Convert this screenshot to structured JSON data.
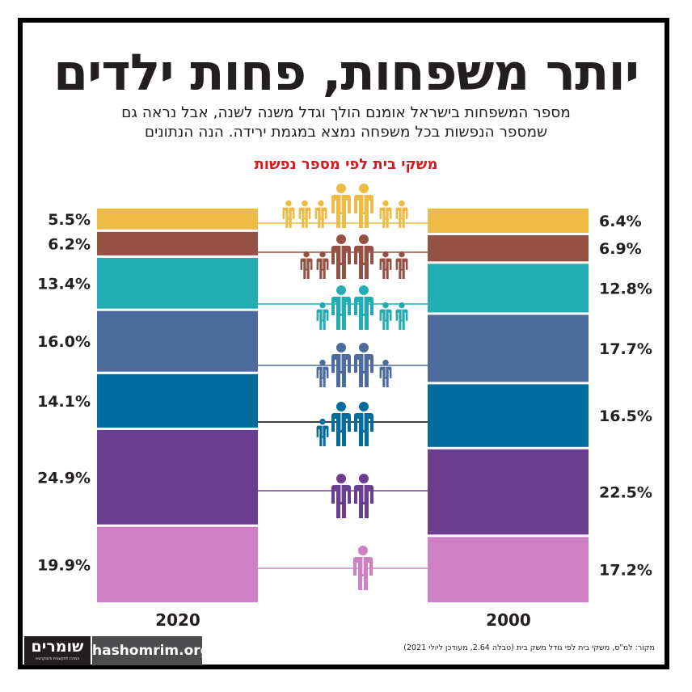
{
  "header": {
    "title": "יותר משפחות, פחות ילדים",
    "subtitle_line1": "מספר המשפחות בישראל אומנם הולך וגדל משנה לשנה, אבל נראה גם",
    "subtitle_line2": "שמספר הנפשות בכל משפחה נמצא במגמת ירידה. הנה הנתונים"
  },
  "chart_data": {
    "type": "bar",
    "title": "משקי בית לפי מספר נפשות",
    "note": "100% stacked bars, one per year; rows paired by household size (top row = 7+ persons, bottom row = 1 person)",
    "categories": [
      "2020",
      "2000"
    ],
    "series": [
      {
        "persons": 7,
        "color": "#eebb47",
        "values": [
          5.5,
          6.4
        ],
        "labels": [
          "5.5%",
          "6.4%"
        ]
      },
      {
        "persons": 6,
        "color": "#955244",
        "values": [
          6.2,
          6.9
        ],
        "labels": [
          "6.2%",
          "6.9%"
        ]
      },
      {
        "persons": 5,
        "color": "#22adb2",
        "values": [
          13.4,
          12.8
        ],
        "labels": [
          "13.4%",
          "12.8%"
        ]
      },
      {
        "persons": 4,
        "color": "#4d6b9c",
        "values": [
          16.0,
          17.7
        ],
        "labels": [
          "16.0%",
          "17.7%"
        ]
      },
      {
        "persons": 3,
        "color": "#006c9e",
        "values": [
          14.1,
          16.5
        ],
        "labels": [
          "14.1%",
          "16.5%"
        ]
      },
      {
        "persons": 2,
        "color": "#6c3e90",
        "values": [
          24.9,
          22.5
        ],
        "labels": [
          "24.9%",
          "22.5%"
        ]
      },
      {
        "persons": 1,
        "color": "#cf80c5",
        "values": [
          19.9,
          17.2
        ],
        "labels": [
          "19.9%",
          "17.2%"
        ]
      }
    ],
    "connector_colors": [
      "#eebb47",
      "#955244",
      "#22adb2",
      "#4d6b9c",
      "#000000",
      "#6c3e90",
      "#cf80c5"
    ],
    "icons": "family-icon rows: adults and children figures per household size"
  },
  "footer": {
    "logo_name": "שומרים",
    "logo_tagline": "המרכז לתקשורת ודמוקרטיה",
    "site": "hashomrim.org",
    "source": "מקור: למ\"ס, משקי בית לפי גודל משק בית (טבלה 2.64, מעודכן ליולי 2021)"
  }
}
